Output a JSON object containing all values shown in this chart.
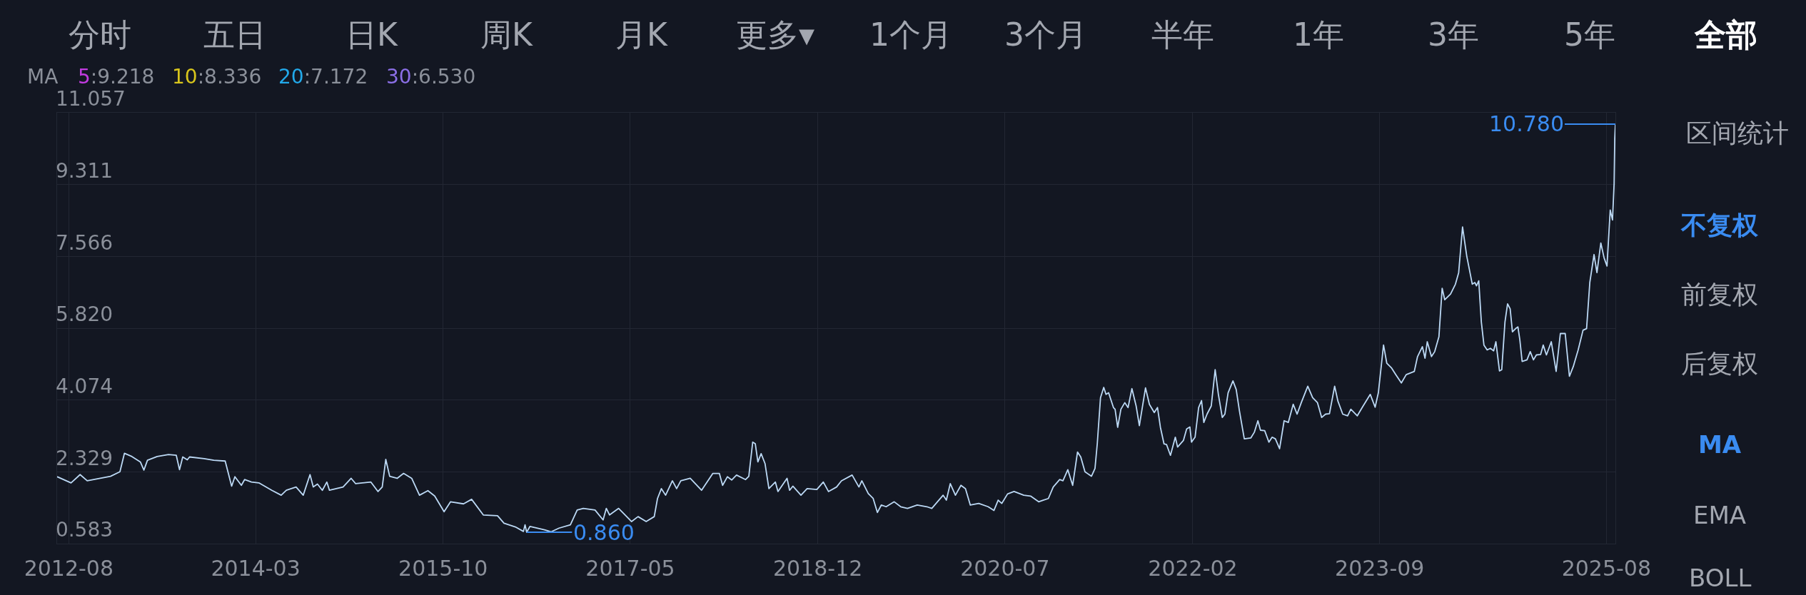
{
  "chart_data": {
    "type": "line",
    "annotations": [
      "分时",
      "五日",
      "日K",
      "周K",
      "月K",
      "更多▾",
      "1个月",
      "3个月",
      "半年",
      "1年",
      "3年",
      "5年",
      "全部",
      "MA",
      "5:9.218",
      "10:8.336",
      "20:7.172",
      "30:6.530",
      "区间统计",
      "不复权",
      "前复权",
      "后复权",
      "MA",
      "EMA",
      "BOLL",
      {
        "text": "0.860",
        "x": "2016-06-15",
        "y": 0.86
      },
      {
        "text": "10.780",
        "x": "2025-08-29",
        "y": 10.78
      }
    ],
    "x": [
      "2012-06-26",
      "2012-08-08",
      "2012-09-05",
      "2012-09-27",
      "2012-12-08",
      "2013-01-06",
      "2013-01-20",
      "2013-02-12",
      "2013-03-10",
      "2013-03-21",
      "2013-04-01",
      "2013-05-01",
      "2013-06-05",
      "2013-06-29",
      "2013-07-09",
      "2013-07-19",
      "2013-08-02",
      "2013-08-09",
      "2013-09-23",
      "2013-10-23",
      "2013-11-27",
      "2013-12-17",
      "2013-12-27",
      "2014-01-16",
      "2014-01-26",
      "2014-02-16",
      "2014-03-11",
      "2014-04-20",
      "2014-05-19",
      "2014-06-04",
      "2014-07-04",
      "2014-07-26",
      "2014-08-16",
      "2014-08-26",
      "2014-09-08",
      "2014-09-23",
      "2014-10-07",
      "2014-10-15",
      "2014-11-26",
      "2014-12-21",
      "2015-01-04",
      "2015-02-20",
      "2015-03-14",
      "2015-03-27",
      "2015-04-07",
      "2015-04-19",
      "2015-05-12",
      "2015-06-01",
      "2015-06-26",
      "2015-07-20",
      "2015-08-15",
      "2015-09-05",
      "2015-10-04",
      "2015-10-24",
      "2015-12-03",
      "2015-12-28",
      "2016-02-02",
      "2016-03-17",
      "2016-04-06",
      "2016-05-11",
      "2016-06-05",
      "2016-06-10",
      "2016-06-15",
      "2016-06-25",
      "2016-08-09",
      "2016-08-29",
      "2016-09-23",
      "2016-10-28",
      "2016-11-18",
      "2016-12-07",
      "2017-01-12",
      "2017-02-06",
      "2017-02-16",
      "2017-02-26",
      "2017-03-26",
      "2017-05-05",
      "2017-05-25",
      "2017-06-19",
      "2017-07-14",
      "2017-07-24",
      "2017-08-05",
      "2017-08-18",
      "2017-09-08",
      "2017-09-21",
      "2017-10-04",
      "2017-11-02",
      "2017-12-07",
      "2018-01-11",
      "2018-01-31",
      "2018-02-10",
      "2018-02-25",
      "2018-03-10",
      "2018-03-25",
      "2018-04-22",
      "2018-05-02",
      "2018-05-14",
      "2018-05-22",
      "2018-05-30",
      "2018-06-09",
      "2018-06-21",
      "2018-07-03",
      "2018-07-23",
      "2018-07-31",
      "2018-08-28",
      "2018-09-05",
      "2018-09-15",
      "2018-10-10",
      "2018-10-29",
      "2018-11-28",
      "2018-12-18",
      "2019-01-03",
      "2019-01-28",
      "2019-02-12",
      "2019-03-17",
      "2019-04-07",
      "2019-04-16",
      "2019-05-06",
      "2019-05-21",
      "2019-06-03",
      "2019-06-15",
      "2019-06-30",
      "2019-07-25",
      "2019-08-14",
      "2019-09-04",
      "2019-10-04",
      "2019-11-03",
      "2019-11-18",
      "2019-12-23",
      "2020-01-02",
      "2020-01-14",
      "2020-01-30",
      "2020-02-16",
      "2020-03-01",
      "2020-03-16",
      "2020-04-11",
      "2020-05-10",
      "2020-05-28",
      "2020-06-10",
      "2020-06-21",
      "2020-07-09",
      "2020-07-29",
      "2020-08-28",
      "2020-09-18",
      "2020-10-13",
      "2020-10-27",
      "2020-11-12",
      "2020-11-27",
      "2020-12-17",
      "2020-12-27",
      "2021-01-11",
      "2021-01-26",
      "2021-02-10",
      "2021-02-20",
      "2021-03-05",
      "2021-03-25",
      "2021-04-05",
      "2021-04-12",
      "2021-04-22",
      "2021-05-02",
      "2021-05-09",
      "2021-05-17",
      "2021-06-01",
      "2021-06-06",
      "2021-06-14",
      "2021-06-24",
      "2021-07-06",
      "2021-07-16",
      "2021-07-28",
      "2021-08-10",
      "2021-08-20",
      "2021-09-08",
      "2021-09-20",
      "2021-10-05",
      "2021-10-15",
      "2021-10-24",
      "2021-11-04",
      "2021-11-12",
      "2021-11-24",
      "2021-12-09",
      "2021-12-16",
      "2022-01-03",
      "2022-01-13",
      "2022-01-23",
      "2022-01-28",
      "2022-02-08",
      "2022-02-19",
      "2022-02-28",
      "2022-03-07",
      "2022-03-17",
      "2022-03-30",
      "2022-04-11",
      "2022-04-21",
      "2022-05-03",
      "2022-05-11",
      "2022-05-21",
      "2022-06-05",
      "2022-06-15",
      "2022-06-25",
      "2022-07-10",
      "2022-07-30",
      "2022-08-10",
      "2022-08-21",
      "2022-08-29",
      "2022-09-11",
      "2022-09-24",
      "2022-10-04",
      "2022-10-14",
      "2022-10-27",
      "2022-11-10",
      "2022-11-23",
      "2022-12-08",
      "2022-12-20",
      "2023-01-02",
      "2023-01-22",
      "2023-02-06",
      "2023-02-21",
      "2023-03-06",
      "2023-03-18",
      "2023-03-30",
      "2023-04-15",
      "2023-04-25",
      "2023-05-10",
      "2023-05-25",
      "2023-06-04",
      "2023-06-24",
      "2023-07-09",
      "2023-08-03",
      "2023-08-18",
      "2023-08-28",
      "2023-09-13",
      "2023-09-23",
      "2023-10-08",
      "2023-10-21",
      "2023-11-07",
      "2023-11-22",
      "2023-12-17",
      "2023-12-27",
      "2024-01-11",
      "2024-01-19",
      "2024-01-26",
      "2024-02-08",
      "2024-02-18",
      "2024-03-02",
      "2024-03-12",
      "2024-03-20",
      "2024-04-07",
      "2024-04-22",
      "2024-05-02",
      "2024-05-14",
      "2024-05-27",
      "2024-06-06",
      "2024-06-13",
      "2024-06-21",
      "2024-06-26",
      "2024-07-03",
      "2024-07-11",
      "2024-07-19",
      "2024-07-29",
      "2024-08-08",
      "2024-08-18",
      "2024-08-25",
      "2024-09-05",
      "2024-09-12",
      "2024-09-22",
      "2024-09-30",
      "2024-10-08",
      "2024-10-15",
      "2024-10-25",
      "2024-11-01",
      "2024-11-07",
      "2024-11-14",
      "2024-11-29",
      "2024-12-09",
      "2024-12-19",
      "2024-12-28",
      "2025-01-10",
      "2025-01-18",
      "2025-01-28",
      "2025-02-12",
      "2025-02-27",
      "2025-03-12",
      "2025-03-27",
      "2025-04-09",
      "2025-04-21",
      "2025-05-06",
      "2025-05-21",
      "2025-06-01",
      "2025-06-11",
      "2025-06-24",
      "2025-07-03",
      "2025-07-15",
      "2025-07-25",
      "2025-08-03",
      "2025-08-13",
      "2025-08-20",
      "2025-08-25",
      "2025-08-27",
      "2025-08-29"
    ],
    "series": [
      {
        "color": "#bcd9f5",
        "values": [
          2.21,
          2.06,
          2.26,
          2.11,
          2.22,
          2.33,
          2.78,
          2.7,
          2.57,
          2.37,
          2.61,
          2.7,
          2.75,
          2.73,
          2.38,
          2.69,
          2.62,
          2.69,
          2.65,
          2.61,
          2.59,
          1.98,
          2.21,
          2.0,
          2.14,
          2.08,
          2.06,
          1.88,
          1.76,
          1.88,
          1.96,
          1.76,
          2.26,
          1.96,
          2.03,
          1.88,
          2.08,
          1.88,
          1.96,
          2.17,
          2.04,
          2.08,
          1.85,
          1.96,
          2.63,
          2.22,
          2.17,
          2.29,
          2.17,
          1.76,
          1.87,
          1.74,
          1.36,
          1.6,
          1.55,
          1.66,
          1.28,
          1.26,
          1.08,
          0.99,
          0.88,
          1.04,
          0.86,
          1.0,
          0.92,
          0.87,
          0.96,
          1.04,
          1.4,
          1.44,
          1.4,
          1.16,
          1.44,
          1.28,
          1.44,
          1.12,
          1.24,
          1.12,
          1.24,
          1.68,
          1.92,
          1.76,
          2.11,
          1.92,
          2.11,
          2.17,
          1.88,
          2.29,
          2.29,
          2.0,
          2.21,
          2.13,
          2.25,
          2.14,
          2.22,
          3.05,
          3.01,
          2.57,
          2.77,
          2.53,
          1.92,
          2.08,
          1.85,
          2.17,
          1.88,
          1.98,
          1.76,
          1.92,
          1.9,
          2.08,
          1.85,
          1.96,
          2.11,
          2.25,
          1.96,
          2.11,
          1.8,
          1.68,
          1.34,
          1.52,
          1.48,
          1.6,
          1.48,
          1.44,
          1.52,
          1.48,
          1.44,
          1.76,
          1.64,
          2.04,
          1.76,
          2.0,
          1.92,
          1.52,
          1.56,
          1.48,
          1.39,
          1.64,
          1.56,
          1.79,
          1.85,
          1.76,
          1.74,
          1.6,
          1.64,
          1.68,
          1.96,
          2.14,
          2.11,
          2.38,
          2.0,
          2.81,
          2.69,
          2.33,
          2.22,
          2.41,
          3.01,
          4.13,
          4.38,
          4.21,
          4.25,
          3.89,
          3.85,
          3.41,
          3.85,
          4.01,
          3.89,
          4.35,
          3.93,
          3.45,
          4.37,
          3.97,
          3.77,
          3.89,
          3.41,
          3.01,
          2.99,
          2.73,
          3.17,
          2.93,
          3.09,
          3.37,
          3.42,
          3.05,
          3.17,
          3.89,
          4.06,
          3.53,
          3.73,
          3.93,
          4.81,
          4.21,
          3.65,
          3.73,
          4.25,
          4.54,
          4.33,
          3.81,
          3.13,
          3.15,
          3.29,
          3.57,
          3.34,
          3.33,
          3.05,
          3.17,
          3.13,
          2.89,
          3.57,
          3.53,
          3.97,
          3.73,
          4.01,
          4.41,
          4.13,
          4.01,
          3.65,
          3.73,
          3.74,
          4.41,
          4.05,
          3.73,
          3.69,
          3.85,
          3.69,
          3.89,
          4.21,
          3.9,
          4.25,
          5.41,
          4.97,
          4.85,
          4.69,
          4.49,
          4.69,
          4.77,
          5.13,
          5.37,
          5.09,
          5.49,
          5.13,
          5.25,
          5.61,
          6.79,
          6.51,
          6.65,
          6.89,
          7.17,
          8.28,
          7.57,
          7.17,
          6.89,
          6.93,
          6.85,
          6.97,
          5.97,
          5.41,
          5.29,
          5.33,
          5.27,
          5.49,
          4.78,
          4.81,
          5.97,
          6.41,
          6.29,
          5.73,
          5.81,
          5.85,
          5.53,
          5.01,
          5.05,
          5.25,
          5.05,
          5.17,
          5.18,
          5.41,
          5.17,
          5.49,
          4.77,
          5.69,
          5.69,
          4.65,
          4.89,
          5.29,
          5.77,
          5.81,
          6.93,
          7.61,
          7.17,
          7.89,
          7.53,
          7.33,
          8.69,
          8.45,
          9.33,
          10.42,
          10.78
        ]
      }
    ],
    "xlim": [
      "2012-06-26",
      "2025-08-29"
    ],
    "xticks": [
      "2012-08",
      "2014-03",
      "2015-10",
      "2017-05",
      "2018-12",
      "2020-07",
      "2022-02",
      "2023-09",
      "2025-08"
    ],
    "ylim": [
      0.583,
      11.057
    ],
    "yticks": [
      0.583,
      2.329,
      4.074,
      {
        "value": 5.82,
        "label": "5.820"
      },
      7.566,
      9.311,
      11.057
    ],
    "grid": true
  }
}
